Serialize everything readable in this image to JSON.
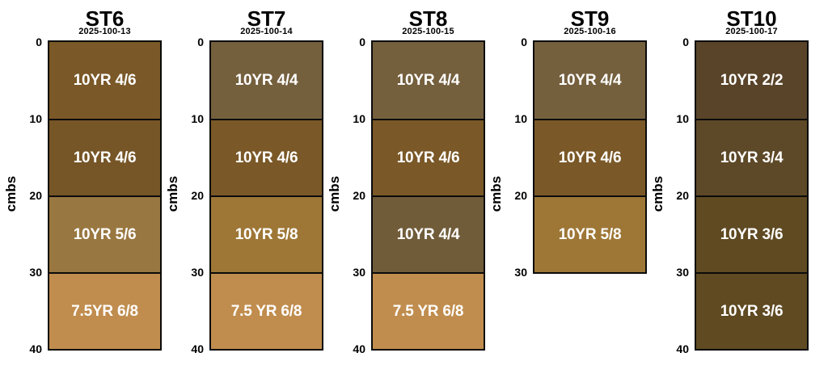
{
  "figure": {
    "background": "#ffffff",
    "text_color": "#000000",
    "border_color": "#0b0b0b",
    "layer_label_color": "#ffffff",
    "axis_label": "cmbs"
  },
  "chart_data": {
    "type": "bar",
    "variant": "stacked-soil-profile-columns",
    "ylabel": "cmbs",
    "y_direction": "down",
    "y_unit": "cm",
    "stations": [
      {
        "id": "ST6",
        "date_code": "2025-100-13",
        "max_depth_cm": 40,
        "depth_ticks": [
          0,
          10,
          20,
          30,
          40
        ],
        "layers": [
          {
            "from_cm": 0,
            "to_cm": 10,
            "munsell": "10YR 4/6",
            "color": "#7a5827"
          },
          {
            "from_cm": 10,
            "to_cm": 20,
            "munsell": "10YR 4/6",
            "color": "#765527"
          },
          {
            "from_cm": 20,
            "to_cm": 30,
            "munsell": "10YR 5/6",
            "color": "#997740"
          },
          {
            "from_cm": 30,
            "to_cm": 40,
            "munsell": "7.5YR 6/8",
            "color": "#c08d4e"
          }
        ]
      },
      {
        "id": "ST7",
        "date_code": "2025-100-14",
        "max_depth_cm": 40,
        "depth_ticks": [
          0,
          10,
          20,
          30,
          40
        ],
        "layers": [
          {
            "from_cm": 0,
            "to_cm": 10,
            "munsell": "10YR 4/4",
            "color": "#75603e"
          },
          {
            "from_cm": 10,
            "to_cm": 20,
            "munsell": "10YR 4/6",
            "color": "#7a5827"
          },
          {
            "from_cm": 20,
            "to_cm": 30,
            "munsell": "10YR 5/8",
            "color": "#9e7737"
          },
          {
            "from_cm": 30,
            "to_cm": 40,
            "munsell": "7.5 YR 6/8",
            "color": "#c08d4e"
          }
        ]
      },
      {
        "id": "ST8",
        "date_code": "2025-100-15",
        "max_depth_cm": 40,
        "depth_ticks": [
          0,
          10,
          20,
          30,
          40
        ],
        "layers": [
          {
            "from_cm": 0,
            "to_cm": 10,
            "munsell": "10YR 4/4",
            "color": "#75603e"
          },
          {
            "from_cm": 10,
            "to_cm": 20,
            "munsell": "10YR 4/6",
            "color": "#7a5827"
          },
          {
            "from_cm": 20,
            "to_cm": 30,
            "munsell": "10YR 4/4",
            "color": "#715c3a"
          },
          {
            "from_cm": 30,
            "to_cm": 40,
            "munsell": "7.5 YR 6/8",
            "color": "#c08d4e"
          }
        ]
      },
      {
        "id": "ST9",
        "date_code": "2025-100-16",
        "max_depth_cm": 30,
        "depth_ticks": [
          0,
          10,
          20,
          30
        ],
        "layers": [
          {
            "from_cm": 0,
            "to_cm": 10,
            "munsell": "10YR 4/4",
            "color": "#75603e"
          },
          {
            "from_cm": 10,
            "to_cm": 20,
            "munsell": "10YR 4/6",
            "color": "#7a5827"
          },
          {
            "from_cm": 20,
            "to_cm": 30,
            "munsell": "10YR 5/8",
            "color": "#9e7737"
          }
        ]
      },
      {
        "id": "ST10",
        "date_code": "2025-100-17",
        "max_depth_cm": 40,
        "depth_ticks": [
          0,
          10,
          20,
          30,
          40
        ],
        "layers": [
          {
            "from_cm": 0,
            "to_cm": 10,
            "munsell": "10YR 2/2",
            "color": "#594429"
          },
          {
            "from_cm": 10,
            "to_cm": 20,
            "munsell": "10YR 3/4",
            "color": "#5d4827"
          },
          {
            "from_cm": 20,
            "to_cm": 30,
            "munsell": "10YR 3/6",
            "color": "#5f4a22"
          },
          {
            "from_cm": 30,
            "to_cm": 40,
            "munsell": "10YR 3/6",
            "color": "#5f4a22"
          }
        ]
      }
    ]
  }
}
